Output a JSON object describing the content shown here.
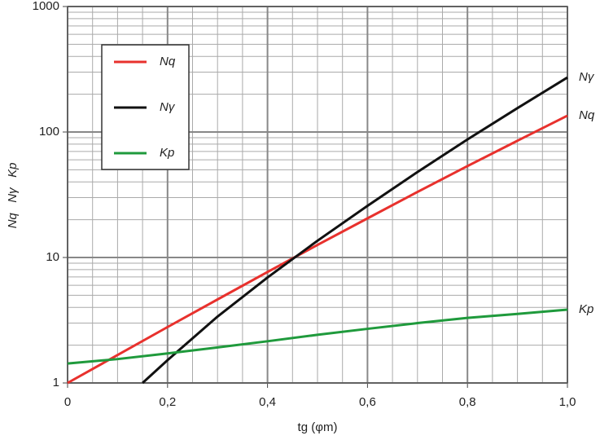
{
  "chart_data": {
    "type": "line",
    "x_label": "tg (φm)",
    "y_label": "Nq   Nγ   Kp",
    "xlim": [
      0,
      1.0
    ],
    "xticks": [
      {
        "value": 0,
        "label": "0"
      },
      {
        "value": 0.2,
        "label": "0,2"
      },
      {
        "value": 0.4,
        "label": "0,4"
      },
      {
        "value": 0.6,
        "label": "0,6"
      },
      {
        "value": 0.8,
        "label": "0,8"
      },
      {
        "value": 1.0,
        "label": "1,0"
      }
    ],
    "ylim": [
      1,
      1000
    ],
    "yticks": [
      1,
      10,
      100,
      1000
    ],
    "log_y": true,
    "grid": true,
    "legend": "upper left",
    "series": [
      {
        "name": "Nq",
        "color": "#e8312d",
        "x": [
          0,
          0.1,
          0.2,
          0.3,
          0.4,
          0.5,
          0.6,
          0.7,
          0.8,
          0.9,
          1.0
        ],
        "values": [
          1,
          1.67,
          2.79,
          4.63,
          7.66,
          12.6,
          20.5,
          33.3,
          53.5,
          85.2,
          135
        ]
      },
      {
        "name": "Nγ",
        "color": "#111111",
        "x": [
          0.15,
          0.2,
          0.3,
          0.4,
          0.5,
          0.6,
          0.7,
          0.8,
          0.9,
          1.0
        ],
        "values": [
          1.0,
          1.52,
          3.38,
          6.93,
          13.6,
          25.8,
          48.0,
          87.2,
          155,
          272
        ]
      },
      {
        "name": "Kp",
        "color": "#1f9a3c",
        "x": [
          0,
          0.1,
          0.2,
          0.3,
          0.4,
          0.5,
          0.6,
          0.7,
          0.8,
          0.9,
          1.0
        ],
        "values": [
          1.43,
          1.55,
          1.72,
          1.92,
          2.15,
          2.42,
          2.7,
          3.0,
          3.3,
          3.55,
          3.84
        ]
      }
    ]
  }
}
